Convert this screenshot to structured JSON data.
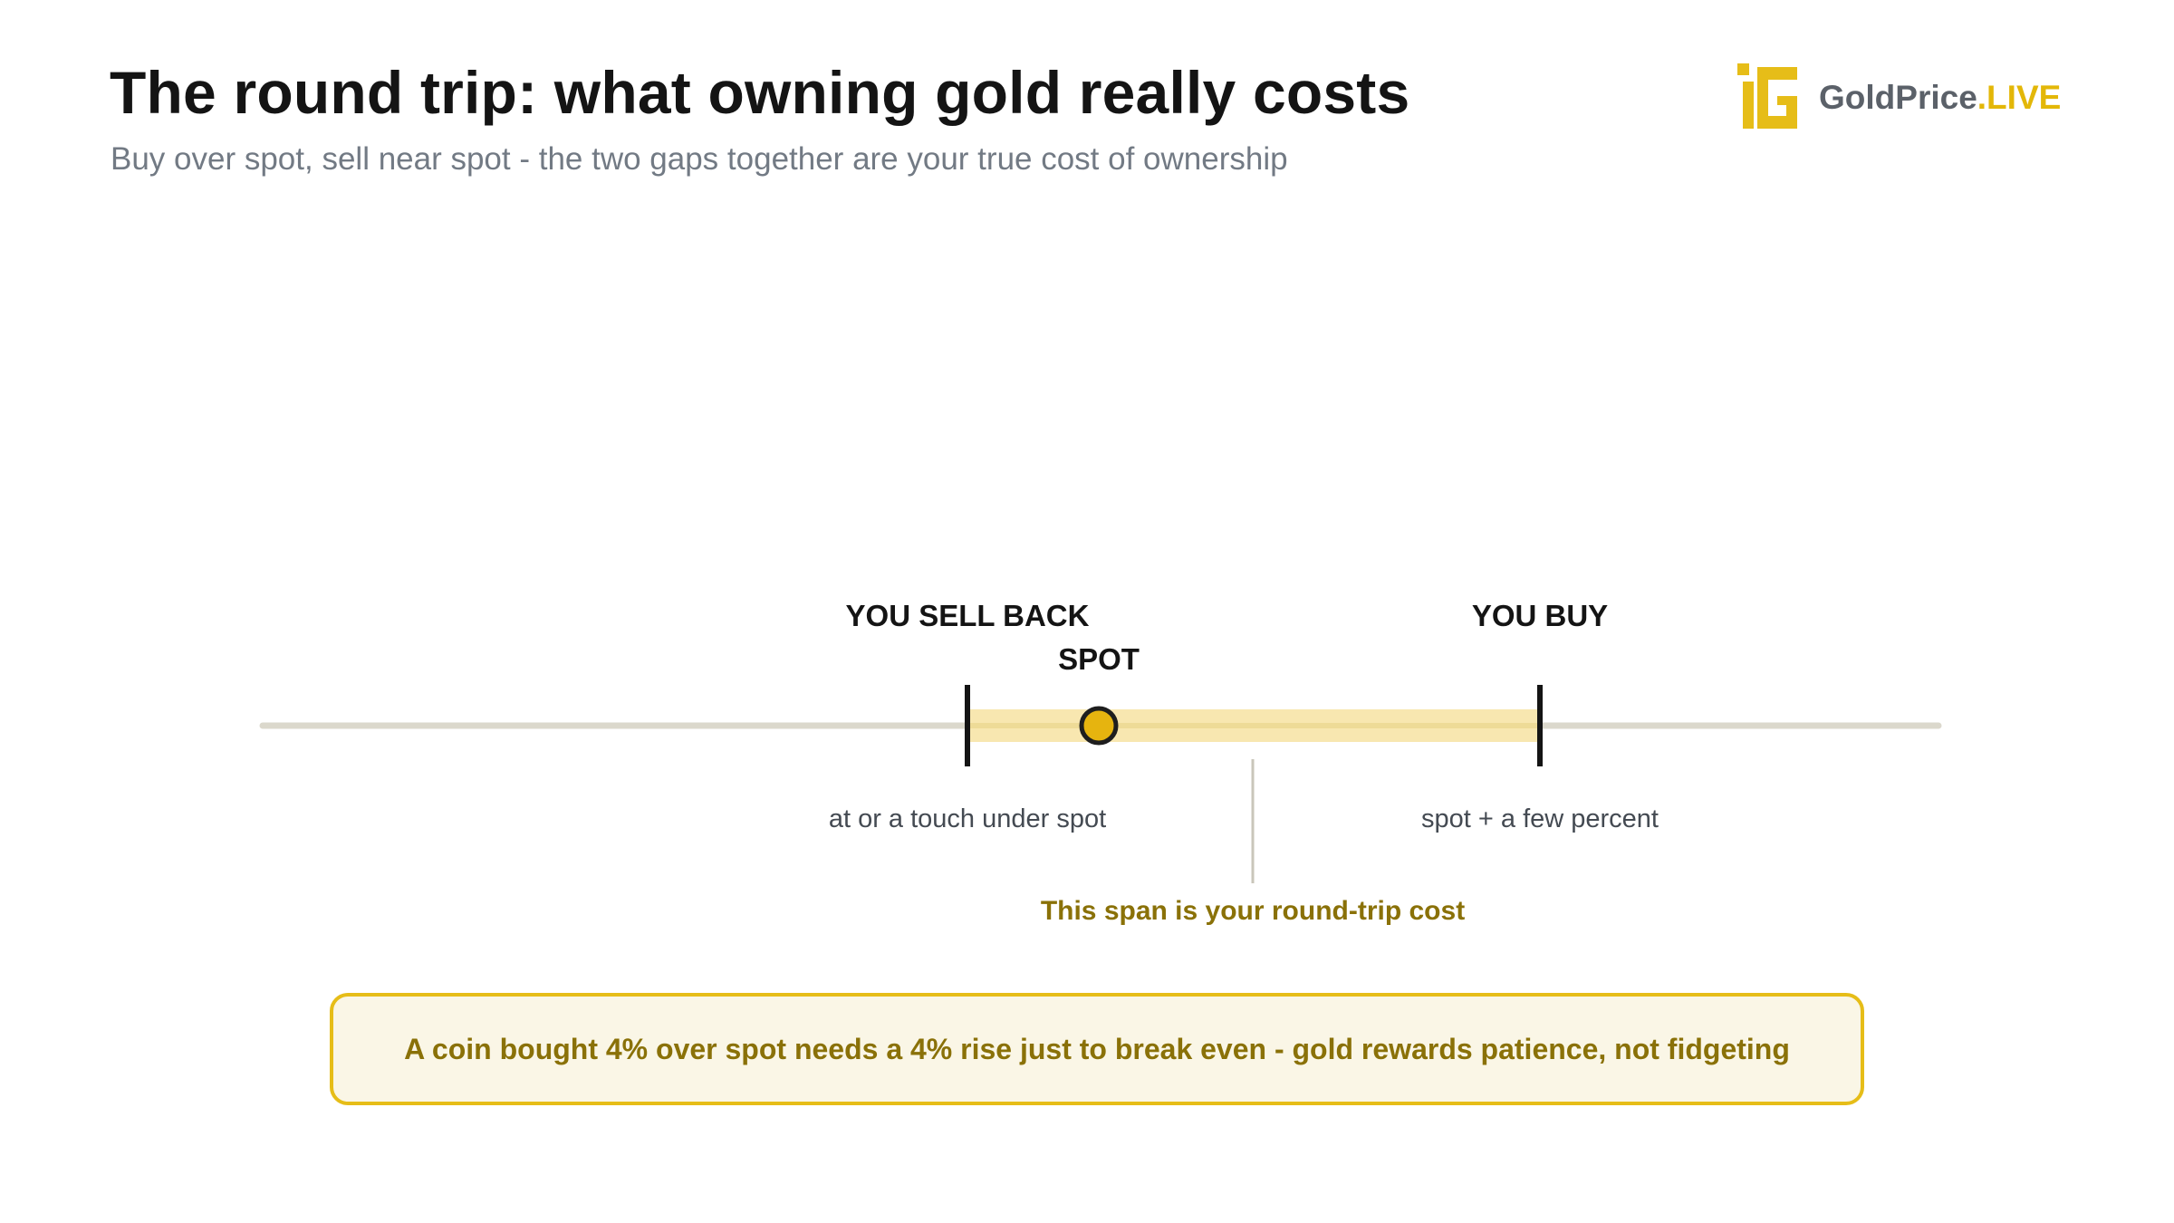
{
  "header": {
    "title": "The round trip: what owning gold really costs",
    "subtitle": "Buy over spot, sell near spot - the two gaps together are your true cost of ownership"
  },
  "logo": {
    "name": "GoldPrice",
    "suffix": ".LIVE"
  },
  "diagram": {
    "sell_label": "YOU SELL BACK",
    "spot_label": "SPOT",
    "buy_label": "YOU BUY",
    "sell_note": "at or a touch under spot",
    "buy_note": "spot + a few percent",
    "span_note": "This span is your round-trip cost"
  },
  "callout": {
    "text": "A coin bought 4% over spot needs a 4% rise just to break even - gold rewards patience, not fidgeting"
  },
  "colors": {
    "gold": "#e6bd18",
    "gold_dark": "#8a7108",
    "band": "#f8e7b0",
    "track": "#dbd8cc",
    "ink": "#141414"
  }
}
